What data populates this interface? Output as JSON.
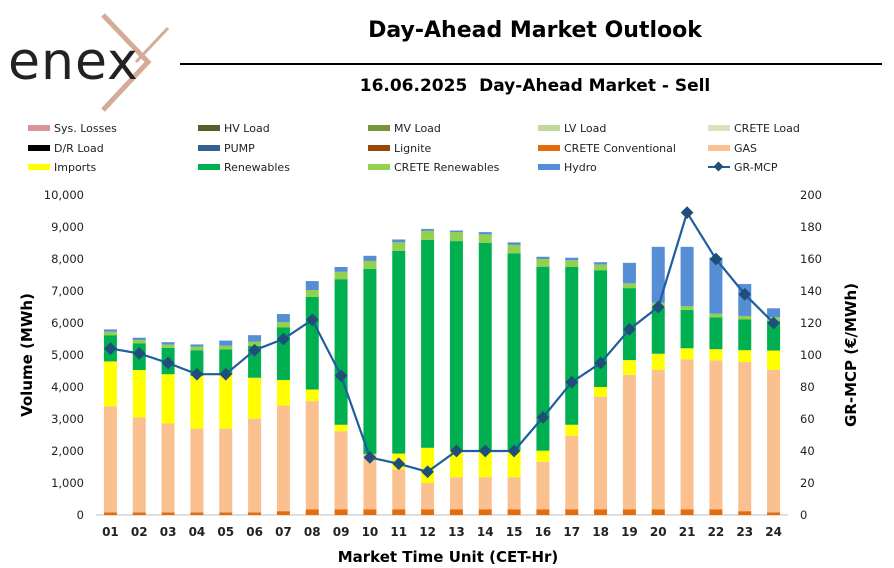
{
  "header": {
    "logo_text": "enex",
    "title": "Day-Ahead Market Outlook",
    "subtitle": "16.06.2025  Day-Ahead Market - Sell"
  },
  "colors": {
    "sys_losses": "#d99694",
    "hv_load": "#4f6228",
    "mv_load": "#77933c",
    "lv_load": "#c3d69b",
    "crete_load": "#d7e4bd",
    "dr_load": "#000000",
    "pump": "#366092",
    "lignite": "#984807",
    "crete_conventional": "#e46c0a",
    "gas": "#fac090",
    "imports": "#ffff00",
    "renewables": "#00b050",
    "crete_renewables": "#92d050",
    "hydro": "#558ed5",
    "gr_mcp": "#1f5e9e"
  },
  "chart_data": {
    "type": "bar",
    "stacked": true,
    "xlabel": "Market Time Unit (CET-Hr)",
    "ylabel": "Volume (MWh)",
    "y2label": "GR-MCP (€/MWh)",
    "ylim": [
      0,
      10000
    ],
    "y2lim": [
      0,
      200
    ],
    "yticks": [
      "0",
      "1,000",
      "2,000",
      "3,000",
      "4,000",
      "5,000",
      "6,000",
      "7,000",
      "8,000",
      "9,000",
      "10,000"
    ],
    "y2ticks": [
      "0",
      "20",
      "40",
      "60",
      "80",
      "100",
      "120",
      "140",
      "160",
      "180",
      "200"
    ],
    "grid": false,
    "legend_position": "top",
    "categories": [
      "01",
      "02",
      "03",
      "04",
      "05",
      "06",
      "07",
      "08",
      "09",
      "10",
      "11",
      "12",
      "13",
      "14",
      "15",
      "16",
      "17",
      "18",
      "19",
      "20",
      "21",
      "22",
      "23",
      "24"
    ],
    "series": [
      {
        "name": "Sys. Losses",
        "key": "sys_losses",
        "kind": "bar",
        "values": [
          0,
          0,
          0,
          0,
          0,
          0,
          0,
          0,
          0,
          0,
          0,
          0,
          0,
          0,
          0,
          0,
          0,
          0,
          0,
          0,
          0,
          0,
          0,
          0
        ]
      },
      {
        "name": "HV Load",
        "key": "hv_load",
        "kind": "bar",
        "values": [
          0,
          0,
          0,
          0,
          0,
          0,
          0,
          0,
          0,
          0,
          0,
          0,
          0,
          0,
          0,
          0,
          0,
          0,
          0,
          0,
          0,
          0,
          0,
          0
        ]
      },
      {
        "name": "MV Load",
        "key": "mv_load",
        "kind": "bar",
        "values": [
          0,
          0,
          0,
          0,
          0,
          0,
          0,
          0,
          0,
          0,
          0,
          0,
          0,
          0,
          0,
          0,
          0,
          0,
          0,
          0,
          0,
          0,
          0,
          0
        ]
      },
      {
        "name": "LV Load",
        "key": "lv_load",
        "kind": "bar",
        "values": [
          0,
          0,
          0,
          0,
          0,
          0,
          0,
          0,
          0,
          0,
          0,
          0,
          0,
          0,
          0,
          0,
          0,
          0,
          0,
          0,
          0,
          0,
          0,
          0
        ]
      },
      {
        "name": "CRETE Load",
        "key": "crete_load",
        "kind": "bar",
        "values": [
          0,
          0,
          0,
          0,
          0,
          0,
          0,
          0,
          0,
          0,
          0,
          0,
          0,
          0,
          0,
          0,
          0,
          0,
          0,
          0,
          0,
          0,
          0,
          0
        ]
      },
      {
        "name": "D/R Load",
        "key": "dr_load",
        "kind": "bar",
        "values": [
          0,
          0,
          0,
          0,
          0,
          0,
          0,
          0,
          0,
          0,
          0,
          0,
          0,
          0,
          0,
          0,
          0,
          0,
          0,
          0,
          0,
          0,
          0,
          0
        ]
      },
      {
        "name": "PUMP",
        "key": "pump",
        "kind": "bar",
        "values": [
          0,
          0,
          0,
          0,
          0,
          0,
          0,
          0,
          0,
          0,
          0,
          0,
          0,
          0,
          0,
          0,
          0,
          0,
          0,
          0,
          0,
          0,
          0,
          0
        ]
      },
      {
        "name": "Lignite",
        "key": "lignite",
        "kind": "bar",
        "values": [
          0,
          0,
          0,
          0,
          0,
          0,
          0,
          0,
          0,
          0,
          0,
          0,
          0,
          0,
          0,
          0,
          0,
          0,
          0,
          0,
          0,
          0,
          0,
          0
        ]
      },
      {
        "name": "CRETE Conventional",
        "key": "crete_conventional",
        "kind": "bar",
        "values": [
          80,
          80,
          80,
          80,
          80,
          80,
          120,
          180,
          180,
          180,
          180,
          180,
          180,
          180,
          180,
          180,
          180,
          180,
          180,
          180,
          180,
          180,
          120,
          80
        ]
      },
      {
        "name": "GAS",
        "key": "gas",
        "kind": "bar",
        "values": [
          3320,
          2970,
          2780,
          2620,
          2620,
          2930,
          3300,
          3380,
          2440,
          1730,
          1240,
          820,
          1000,
          1000,
          1000,
          1480,
          2300,
          3520,
          4200,
          4360,
          4680,
          4650,
          4660,
          4460
        ]
      },
      {
        "name": "Imports",
        "key": "imports",
        "kind": "bar",
        "values": [
          1400,
          1480,
          1540,
          1650,
          1680,
          1280,
          800,
          360,
          200,
          0,
          500,
          1100,
          850,
          850,
          850,
          350,
          340,
          300,
          460,
          500,
          350,
          350,
          370,
          600
        ]
      },
      {
        "name": "Renewables",
        "key": "renewables",
        "kind": "bar",
        "values": [
          820,
          830,
          820,
          800,
          800,
          1000,
          1640,
          2900,
          4550,
          5780,
          6330,
          6500,
          6530,
          6470,
          6150,
          5750,
          4930,
          3650,
          2250,
          1450,
          1200,
          1000,
          960,
          930
        ]
      },
      {
        "name": "CRETE Renewables",
        "key": "crete_renewables",
        "kind": "bar",
        "values": [
          110,
          110,
          110,
          110,
          110,
          130,
          170,
          210,
          230,
          250,
          270,
          280,
          280,
          270,
          260,
          240,
          210,
          180,
          150,
          140,
          120,
          110,
          110,
          110
        ]
      },
      {
        "name": "Hydro",
        "key": "hydro",
        "kind": "bar",
        "values": [
          70,
          70,
          70,
          70,
          160,
          200,
          250,
          280,
          150,
          160,
          90,
          60,
          50,
          70,
          80,
          70,
          80,
          70,
          640,
          1750,
          1850,
          1750,
          1000,
          280
        ]
      },
      {
        "name": "GR-MCP",
        "key": "gr_mcp",
        "kind": "line",
        "axis": "right",
        "values": [
          104,
          101,
          95,
          88,
          88,
          103,
          110,
          122,
          87,
          36,
          32,
          27,
          40,
          40,
          40,
          61,
          83,
          95,
          116,
          130,
          189,
          160,
          138,
          120
        ]
      }
    ]
  }
}
